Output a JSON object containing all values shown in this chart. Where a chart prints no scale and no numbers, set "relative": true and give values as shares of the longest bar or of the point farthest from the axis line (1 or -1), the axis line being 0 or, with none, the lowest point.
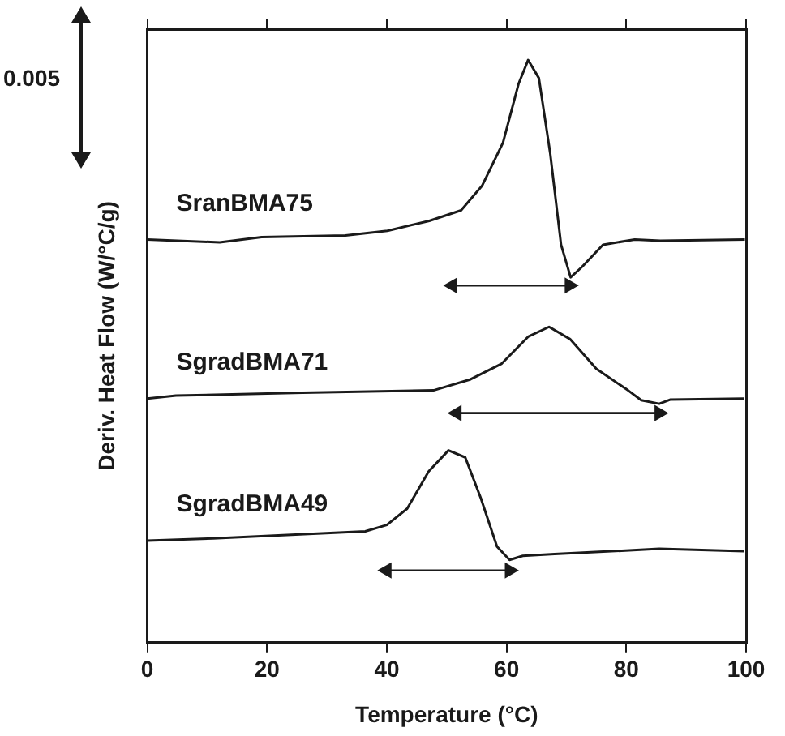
{
  "chart_data": {
    "type": "line",
    "xlabel": "Temperature (°C)",
    "ylabel": "Deriv. Heat Flow (W/°C/g)",
    "relative": true,
    "xlim": [
      0,
      100
    ],
    "xticks": [
      0,
      20,
      40,
      60,
      80,
      100
    ],
    "grid": false,
    "legend": false,
    "marker": "none",
    "line_style": "solid",
    "annotations": [
      "0.005"
    ],
    "series": [
      {
        "name": "SranBMA75",
        "color": "#1a1a1a",
        "x": [
          0,
          12.1,
          19.1,
          33.1,
          40.1,
          47.1,
          52.4,
          55.9,
          59.4,
          62.0,
          63.6,
          65.4,
          67.3,
          69.1,
          70.7,
          72.6,
          76.1,
          81.4,
          85.7,
          99.8
        ],
        "values": [
          0.692,
          0.687,
          0.696,
          0.699,
          0.707,
          0.724,
          0.742,
          0.784,
          0.858,
          0.959,
          1.0,
          0.969,
          0.839,
          0.683,
          0.627,
          0.645,
          0.683,
          0.692,
          0.69,
          0.692
        ]
      },
      {
        "name": "SgradBMA71",
        "color": "#1a1a1a",
        "x": [
          0,
          4.8,
          25.9,
          47.8,
          54.0,
          59.2,
          63.6,
          67.1,
          70.6,
          75.0,
          80.3,
          82.5,
          85.5,
          87.3,
          99.6
        ],
        "values": [
          0.419,
          0.424,
          0.429,
          0.433,
          0.452,
          0.479,
          0.525,
          0.542,
          0.521,
          0.47,
          0.433,
          0.416,
          0.41,
          0.417,
          0.419
        ]
      },
      {
        "name": "SgradBMA49",
        "color": "#1a1a1a",
        "x": [
          0,
          11,
          36.4,
          40,
          43.4,
          47,
          50.3,
          53.1,
          55.7,
          58.4,
          60.5,
          62.7,
          68,
          85.5,
          99.6
        ],
        "values": [
          0.175,
          0.179,
          0.191,
          0.202,
          0.23,
          0.294,
          0.33,
          0.318,
          0.248,
          0.165,
          0.142,
          0.149,
          0.152,
          0.161,
          0.157
        ]
      },
      {
        "color": "#1a1a1a",
        "marker": "triangle",
        "x": [
          51,
          70.5
        ],
        "values": [
          0.613,
          0.613
        ]
      },
      {
        "color": "#1a1a1a",
        "marker": "triangle",
        "x": [
          51.7,
          85.5
        ],
        "values": [
          0.394,
          0.394
        ]
      },
      {
        "color": "#1a1a1a",
        "marker": "triangle",
        "x": [
          40,
          60.5
        ],
        "values": [
          0.124,
          0.124
        ]
      }
    ]
  }
}
